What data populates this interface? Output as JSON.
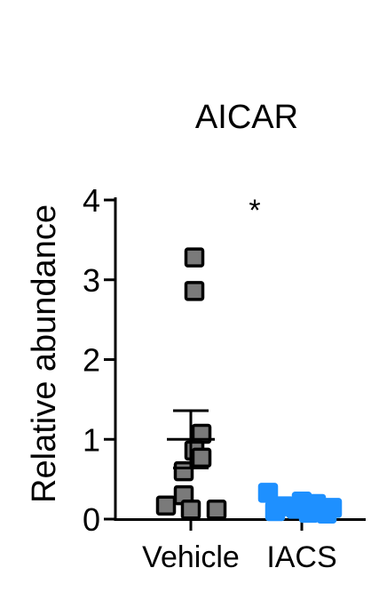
{
  "chart_data": {
    "type": "scatter",
    "title": "AICAR",
    "xlabel": "",
    "ylabel": "Relative abundance",
    "ylim": [
      0,
      4
    ],
    "yticks": [
      "0",
      "1",
      "2",
      "3",
      "4"
    ],
    "categories": [
      "Vehicle",
      "IACS"
    ],
    "annotation": "*",
    "annotation_category": "IACS",
    "grid": false,
    "series": [
      {
        "category": "Vehicle",
        "color": "#7a7a7a",
        "edge_color": "#000000",
        "points": [
          3.28,
          2.86,
          1.07,
          0.86,
          0.77,
          0.6,
          0.3,
          0.17,
          0.12,
          0.12
        ],
        "mean": 1.0,
        "error_upper": 1.36,
        "error_lower": 0.64
      },
      {
        "category": "IACS",
        "color": "#1e90ff",
        "edge_color": "#1e90ff",
        "points": [
          0.33,
          0.22,
          0.19,
          0.16,
          0.14,
          0.13,
          0.12,
          0.1,
          0.08,
          0.07
        ],
        "mean": 0.15,
        "error_upper": 0.2,
        "error_lower": 0.1
      }
    ]
  }
}
